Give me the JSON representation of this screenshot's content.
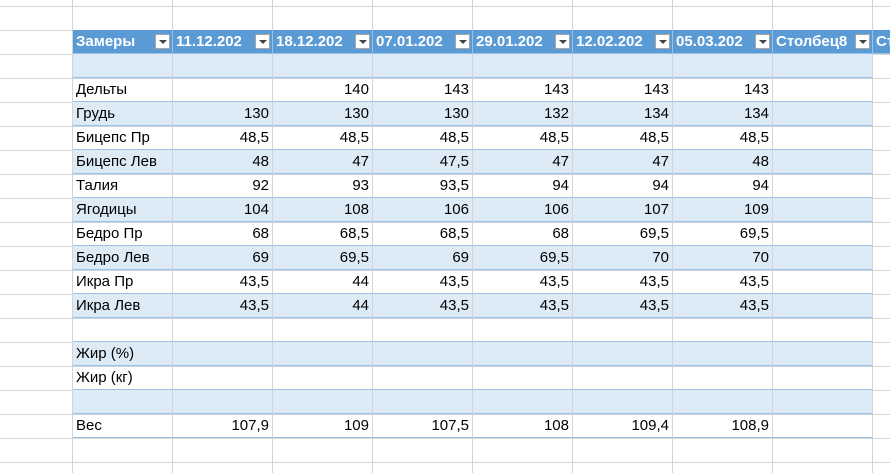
{
  "table": {
    "headers": [
      "Замеры",
      "11.12.202",
      "18.12.202",
      "07.01.202",
      "29.01.202",
      "12.02.202",
      "05.03.202",
      "Столбец8",
      "Ст"
    ],
    "rows": [
      null,
      [
        "Дельты",
        null,
        "140",
        "143",
        "143",
        "143",
        "143"
      ],
      [
        "Грудь",
        "130",
        "130",
        "130",
        "132",
        "134",
        "134"
      ],
      [
        "Бицепс Пр",
        "48,5",
        "48,5",
        "48,5",
        "48,5",
        "48,5",
        "48,5"
      ],
      [
        "Бицепс Лев",
        "48",
        "47",
        "47,5",
        "47",
        "47",
        "48"
      ],
      [
        "Талия",
        "92",
        "93",
        "93,5",
        "94",
        "94",
        "94"
      ],
      [
        "Ягодицы",
        "104",
        "108",
        "106",
        "106",
        "107",
        "109"
      ],
      [
        "Бедро Пр",
        "68",
        "68,5",
        "68,5",
        "68",
        "69,5",
        "69,5"
      ],
      [
        "Бедро Лев",
        "69",
        "69,5",
        "69",
        "69,5",
        "70",
        "70"
      ],
      [
        "Икра Пр",
        "43,5",
        "44",
        "43,5",
        "43,5",
        "43,5",
        "43,5"
      ],
      [
        "Икра Лев",
        "43,5",
        "44",
        "43,5",
        "43,5",
        "43,5",
        "43,5"
      ],
      null,
      [
        "Жир (%)",
        null,
        null,
        null,
        null,
        null,
        null
      ],
      [
        "Жир (кг)",
        null,
        null,
        null,
        null,
        null,
        null
      ],
      null,
      [
        "Вес",
        "107,9",
        "109",
        "107,5",
        "108",
        "109,4",
        "108,9"
      ]
    ]
  }
}
